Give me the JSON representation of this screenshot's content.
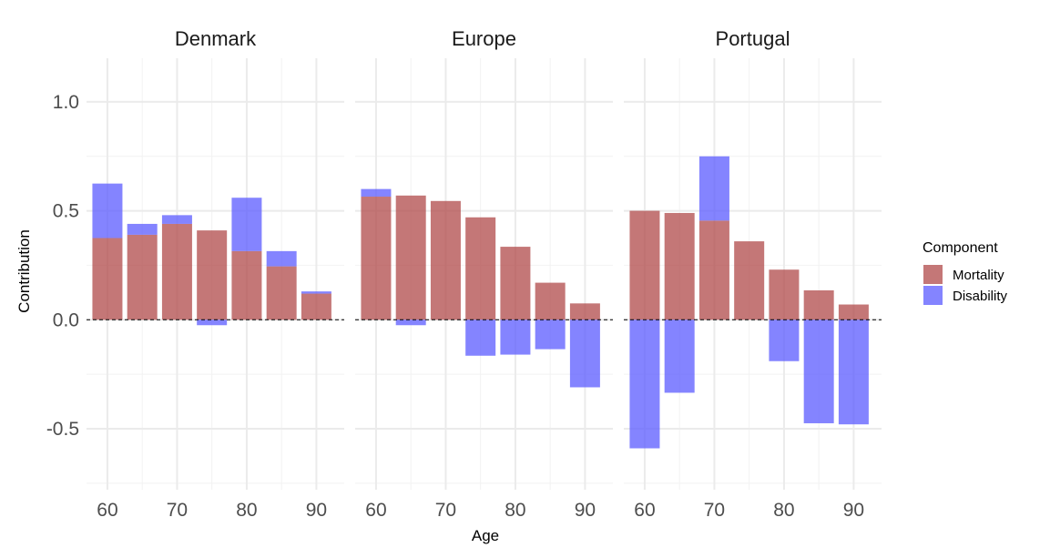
{
  "chart_data": {
    "type": "bar",
    "stacked": true,
    "xlabel": "Age",
    "ylabel": "Contribution",
    "ylim": [
      -0.78,
      1.2
    ],
    "xlim": [
      57,
      94
    ],
    "y_ticks": [
      -0.5,
      0.0,
      0.5,
      1.0
    ],
    "y_tick_labels": [
      "-0.5",
      "0.0",
      "0.5",
      "1.0"
    ],
    "x_ticks": [
      60,
      70,
      80,
      90
    ],
    "x_tick_labels": [
      "60",
      "70",
      "80",
      "90"
    ],
    "ages": [
      60,
      65,
      70,
      75,
      80,
      85,
      90
    ],
    "zero_line": "dashed",
    "grid": true,
    "legend": {
      "title": "Component",
      "placement": "right",
      "entries": [
        {
          "name": "Mortality",
          "color": "#b04a4a"
        },
        {
          "name": "Disability",
          "color": "#5b5bff"
        }
      ]
    },
    "facets": [
      {
        "title": "Denmark",
        "series": [
          {
            "name": "Mortality",
            "values": [
              0.375,
              0.39,
              0.44,
              0.41,
              0.315,
              0.245,
              0.12
            ]
          },
          {
            "name": "Disability",
            "values": [
              0.25,
              0.05,
              0.04,
              -0.025,
              0.245,
              0.07,
              0.01
            ]
          }
        ]
      },
      {
        "title": "Europe",
        "series": [
          {
            "name": "Mortality",
            "values": [
              0.565,
              0.57,
              0.545,
              0.47,
              0.335,
              0.17,
              0.075
            ]
          },
          {
            "name": "Disability",
            "values": [
              0.035,
              -0.025,
              0.0,
              -0.165,
              -0.16,
              -0.135,
              -0.31
            ]
          }
        ]
      },
      {
        "title": "Portugal",
        "series": [
          {
            "name": "Mortality",
            "values": [
              0.5,
              0.49,
              0.455,
              0.36,
              0.23,
              0.135,
              0.07
            ]
          },
          {
            "name": "Disability",
            "values": [
              -0.59,
              -0.335,
              0.295,
              0.0,
              -0.19,
              -0.475,
              -0.48
            ]
          }
        ]
      }
    ]
  }
}
